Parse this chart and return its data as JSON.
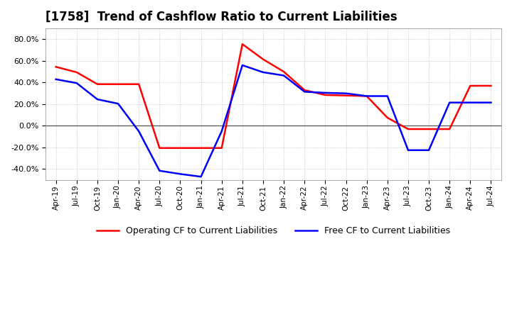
{
  "title": "[1758]  Trend of Cashflow Ratio to Current Liabilities",
  "title_fontsize": 12,
  "ylim": [
    -0.5,
    0.9
  ],
  "yticks": [
    -0.4,
    -0.2,
    0.0,
    0.2,
    0.4,
    0.6,
    0.8
  ],
  "background_color": "#ffffff",
  "plot_bg_color": "#ffffff",
  "grid_color": "#b0b0b0",
  "zero_line_color": "#555555",
  "operating_cf_color": "#ff0000",
  "free_cf_color": "#0000ff",
  "line_width": 1.8,
  "x_labels": [
    "Apr-19",
    "Jul-19",
    "Oct-19",
    "Jan-20",
    "Apr-20",
    "Jul-20",
    "Oct-20",
    "Jan-21",
    "Apr-21",
    "Jul-21",
    "Oct-21",
    "Jan-22",
    "Apr-22",
    "Jul-22",
    "Oct-22",
    "Jan-23",
    "Apr-23",
    "Jul-23",
    "Oct-23",
    "Jan-24",
    "Apr-24",
    "Jul-24"
  ],
  "operating_cf": [
    0.545,
    0.495,
    0.385,
    0.385,
    0.385,
    -0.205,
    -0.205,
    -0.205,
    -0.205,
    0.755,
    0.615,
    0.5,
    0.33,
    0.285,
    0.28,
    0.275,
    0.075,
    -0.03,
    -0.03,
    -0.03,
    0.37,
    0.37
  ],
  "free_cf": [
    0.43,
    0.395,
    0.245,
    0.205,
    -0.05,
    -0.415,
    -0.445,
    -0.47,
    -0.05,
    0.56,
    0.495,
    0.465,
    0.315,
    0.305,
    0.3,
    0.275,
    0.275,
    -0.225,
    -0.225,
    0.215,
    0.215,
    0.215
  ],
  "legend_operating": "Operating CF to Current Liabilities",
  "legend_free": "Free CF to Current Liabilities"
}
